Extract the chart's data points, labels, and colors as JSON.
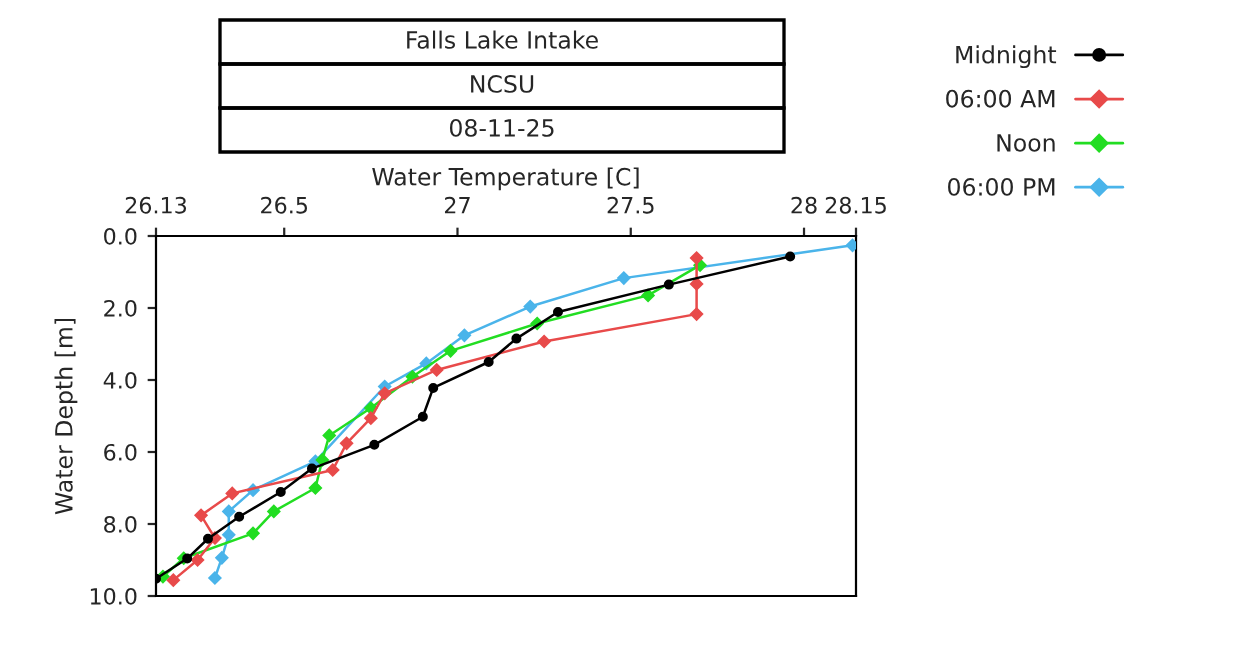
{
  "chart_data": {
    "type": "line",
    "title": "Falls Lake Intake",
    "subtitle": "NCSU",
    "annotations": [
      "08-11-25"
    ],
    "xlabel": "Water Temperature [C]",
    "ylabel": "Water Depth [m]",
    "xlim": [
      26.13,
      28.15
    ],
    "xticks": [
      26.13,
      26.5,
      27,
      27.5,
      28,
      28.15
    ],
    "ylim": [
      10,
      0
    ],
    "yticks": [
      {
        "value": 0,
        "label": "0.0"
      },
      {
        "value": 2,
        "label": "2.0"
      },
      {
        "value": 4,
        "label": "4.0"
      },
      {
        "value": 6,
        "label": "6.0"
      },
      {
        "value": 8,
        "label": "8.0"
      },
      {
        "value": 10,
        "label": "10.0"
      }
    ],
    "grid": false,
    "legend": "right",
    "series": [
      {
        "name": "Midnight",
        "color": "#000000",
        "marker": "circle",
        "x": [
          26.13,
          26.22,
          26.28,
          26.37,
          26.49,
          26.58,
          26.76,
          26.9,
          26.93,
          27.09,
          27.17,
          27.29,
          27.61,
          27.96
        ],
        "values": [
          9.52,
          8.96,
          8.41,
          7.8,
          7.11,
          6.46,
          5.8,
          5.02,
          4.22,
          3.5,
          2.85,
          2.11,
          1.35,
          0.57
        ]
      },
      {
        "name": "06:00 AM",
        "color": "#e84a4a",
        "marker": "diamond",
        "x": [
          26.18,
          26.25,
          26.3,
          26.26,
          26.35,
          26.64,
          26.68,
          26.75,
          26.79,
          26.94,
          27.25,
          27.69,
          27.69,
          27.69
        ],
        "values": [
          9.56,
          9.0,
          8.39,
          7.76,
          7.15,
          6.5,
          5.76,
          5.06,
          4.37,
          3.72,
          2.93,
          2.17,
          1.33,
          0.61
        ]
      },
      {
        "name": "Noon",
        "color": "#22dd22",
        "marker": "diamond",
        "x": [
          26.15,
          26.21,
          26.41,
          26.47,
          26.59,
          26.61,
          26.63,
          26.75,
          26.87,
          26.98,
          27.23,
          27.55,
          27.7
        ],
        "values": [
          9.46,
          8.95,
          8.26,
          7.65,
          7.0,
          6.22,
          5.54,
          4.78,
          3.91,
          3.19,
          2.43,
          1.65,
          0.81
        ]
      },
      {
        "name": "06:00 PM",
        "color": "#4ab4ea",
        "marker": "diamond",
        "x": [
          26.3,
          26.32,
          26.34,
          26.34,
          26.41,
          26.59,
          26.79,
          26.91,
          27.02,
          27.21,
          27.48,
          28.14
        ],
        "values": [
          9.5,
          8.94,
          8.3,
          7.65,
          7.06,
          6.26,
          4.18,
          3.54,
          2.76,
          1.96,
          1.17,
          0.26
        ]
      }
    ]
  }
}
